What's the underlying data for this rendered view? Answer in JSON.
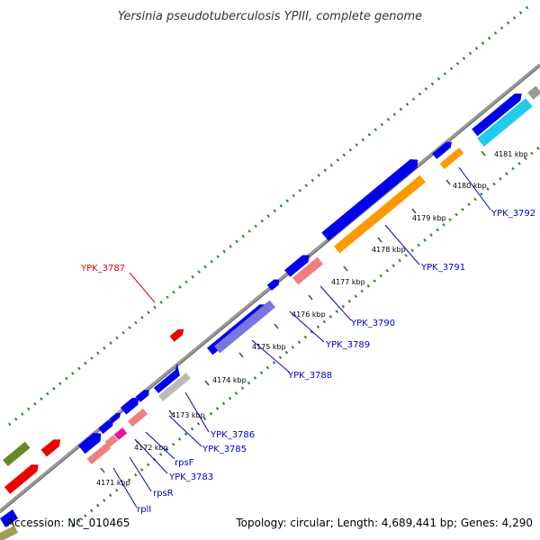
{
  "title": "Yersinia pseudotuberculosis YPIII, complete genome",
  "accession": "Accession: NC_010465",
  "summary": "Topology: circular; Length: 4,689,441 bp; Genes: 4,290",
  "ticks": [
    "4171 kbp",
    "4172 kbp",
    "4173 kbp",
    "4174 kbp",
    "4175 kbp",
    "4176 kbp",
    "4177 kbp",
    "4178 kbp",
    "4179 kbp",
    "4180 kbp",
    "4181 kbp"
  ],
  "gene_labels": [
    "YPK_3787",
    "YPK_3792",
    "YPK_3791",
    "YPK_3790",
    "YPK_3789",
    "YPK_3788",
    "YPK_3786",
    "YPK_3785",
    "rpsF",
    "YPK_3783",
    "rpsR",
    "rplI"
  ],
  "colors": {
    "cds": "#0000ee",
    "highlight": "#ee0000",
    "rrna_orange": "#ff9900",
    "cyan": "#22ccee",
    "pink": "#f08080",
    "magenta": "#ee1199",
    "violet": "#7777dd",
    "grey": "#bbbbbb",
    "olive": "#668822",
    "backbone": "#999999",
    "gc_dots": "#228822"
  }
}
